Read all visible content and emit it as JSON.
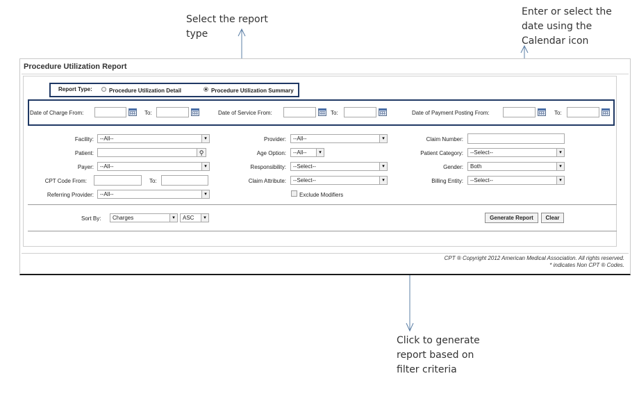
{
  "callouts": {
    "report_type": "Select the report\ntype",
    "date": "Enter or select the\ndate using the\nCalendar icon",
    "generate": "Click to generate\nreport based on\nfilter criteria"
  },
  "app_title": "Procedure Utilization Report",
  "report_type": {
    "label": "Report Type:",
    "options": [
      {
        "label": "Procedure Utilization Detail",
        "selected": false
      },
      {
        "label": "Procedure Utilization Summary",
        "selected": true
      }
    ]
  },
  "dates": {
    "charge_from_label": "Date of Charge From:",
    "service_from_label": "Date of Service From:",
    "payment_from_label": "Date of Payment Posting From:",
    "to_label": "To:",
    "charge_from": "",
    "charge_to": "",
    "service_from": "",
    "service_to": "",
    "payment_from": "",
    "payment_to": ""
  },
  "filters": {
    "facility": {
      "label": "Facility:",
      "value": "--All--"
    },
    "provider": {
      "label": "Provider:",
      "value": "--All--"
    },
    "claim_number": {
      "label": "Claim Number:",
      "value": ""
    },
    "patient": {
      "label": "Patient:",
      "value": ""
    },
    "age_option": {
      "label": "Age Option:",
      "value": "--All--"
    },
    "patient_category": {
      "label": "Patient Category:",
      "value": "--Select--"
    },
    "payer": {
      "label": "Payer:",
      "value": "--All--"
    },
    "responsibility": {
      "label": "Responsibility:",
      "value": "--Select--"
    },
    "gender": {
      "label": "Gender:",
      "value": "Both"
    },
    "cpt_code_from": {
      "label": "CPT Code From:",
      "value": ""
    },
    "cpt_code_to": {
      "label": "To:",
      "value": ""
    },
    "claim_attribute": {
      "label": "Claim Attribute:",
      "value": "--Select--"
    },
    "billing_entity": {
      "label": "Billing Entity:",
      "value": "--Select--"
    },
    "referring_provider": {
      "label": "Referring Provider:",
      "value": "--All--"
    },
    "exclude_modifiers": {
      "label": "Exclude Modifiers",
      "checked": false
    }
  },
  "sort": {
    "label": "Sort By:",
    "field": "Charges",
    "order": "ASC"
  },
  "buttons": {
    "generate": "Generate Report",
    "clear": "Clear"
  },
  "copyright": {
    "line1": "CPT ® Copyright 2012 American Medical Association. All rights reserved.",
    "line2": "* indicates Non CPT ® Codes."
  },
  "icons": {
    "calendar": "calendar-icon",
    "search": "magnifier-icon",
    "dropdown": "chevron-down-icon"
  }
}
